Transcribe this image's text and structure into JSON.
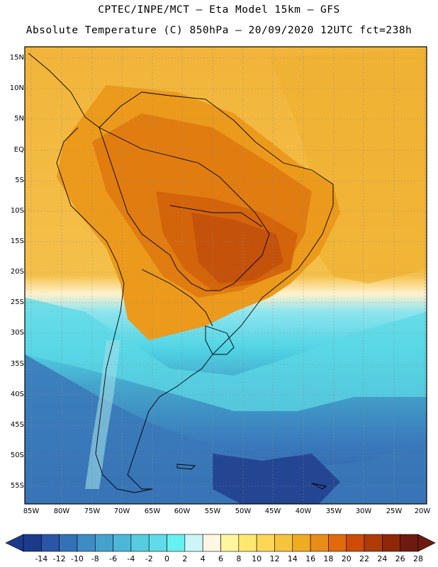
{
  "header": {
    "line1": "CPTEC/INPE/MCT –  Eta Model 15km – GFS",
    "line2": "Absolute Temperature (C) 850hPa – 20/09/2020 12UTC fct=238h"
  },
  "axes": {
    "lat_labels": [
      "15N",
      "10N",
      "5N",
      "EQ",
      "5S",
      "10S",
      "15S",
      "20S",
      "25S",
      "30S",
      "35S",
      "40S",
      "45S",
      "50S",
      "55S"
    ],
    "lon_labels": [
      "85W",
      "80W",
      "75W",
      "70W",
      "65W",
      "60W",
      "55W",
      "50W",
      "45W",
      "40W",
      "35W",
      "30W",
      "25W",
      "20W"
    ]
  },
  "colorbar": {
    "labels": [
      "-14",
      "-12",
      "-10",
      "-8",
      "-6",
      "-4",
      "-2",
      "0",
      "2",
      "4",
      "6",
      "8",
      "10",
      "12",
      "14",
      "16",
      "18",
      "20",
      "22",
      "24",
      "26",
      "28"
    ],
    "colors": [
      "#1c3a8c",
      "#2a56a8",
      "#3472b8",
      "#3e8cc4",
      "#44a2cc",
      "#4cb8d8",
      "#55ccdf",
      "#5fdce8",
      "#66f0f2",
      "#cdf5f8",
      "#fff7e4",
      "#fff59e",
      "#ffe870",
      "#fcd856",
      "#f6c43c",
      "#f0ac20",
      "#ea8c18",
      "#e06a0c",
      "#cc4c08",
      "#b03a08",
      "#8e2808",
      "#6e1a10"
    ]
  },
  "map": {
    "field": "Absolute Temperature 850hPa",
    "units": "C",
    "region": "South America"
  }
}
